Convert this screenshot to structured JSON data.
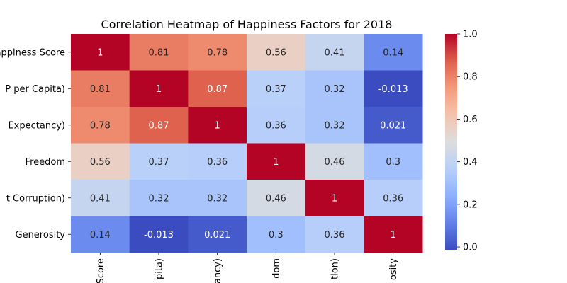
{
  "chart_data": {
    "type": "heatmap",
    "title": "Correlation Heatmap of Happiness Factors for 2018",
    "row_labels": [
      "appiness Score",
      "P per Capita)",
      "Expectancy)",
      "Freedom",
      "t Corruption)",
      "Generosity"
    ],
    "col_labels": [
      "Score",
      "pita)",
      "ancy)",
      "dom",
      "tion)",
      "osity"
    ],
    "values": [
      [
        1,
        0.81,
        0.78,
        0.56,
        0.41,
        0.14
      ],
      [
        0.81,
        1,
        0.87,
        0.37,
        0.32,
        -0.013
      ],
      [
        0.78,
        0.87,
        1,
        0.36,
        0.32,
        0.021
      ],
      [
        0.56,
        0.37,
        0.36,
        1,
        0.46,
        0.3
      ],
      [
        0.41,
        0.32,
        0.32,
        0.46,
        1,
        0.36
      ],
      [
        0.14,
        -0.013,
        0.021,
        0.3,
        0.36,
        1
      ]
    ],
    "annotations": [
      [
        "1",
        "0.81",
        "0.78",
        "0.56",
        "0.41",
        "0.14"
      ],
      [
        "0.81",
        "1",
        "0.87",
        "0.37",
        "0.32",
        "-0.013"
      ],
      [
        "0.78",
        "0.87",
        "1",
        "0.36",
        "0.32",
        "0.021"
      ],
      [
        "0.56",
        "0.37",
        "0.36",
        "1",
        "0.46",
        "0.3"
      ],
      [
        "0.41",
        "0.32",
        "0.32",
        "0.46",
        "1",
        "0.36"
      ],
      [
        "0.14",
        "-0.013",
        "0.021",
        "0.3",
        "0.36",
        "1"
      ]
    ],
    "colormap": "coolwarm",
    "vmin": -0.013,
    "vmax": 1.0,
    "colorbar_ticks": [
      0.0,
      0.2,
      0.4,
      0.6,
      0.8,
      1.0
    ],
    "colorbar_tick_labels": [
      "0.0",
      "0.2",
      "0.4",
      "0.6",
      "0.8",
      "1.0"
    ]
  }
}
